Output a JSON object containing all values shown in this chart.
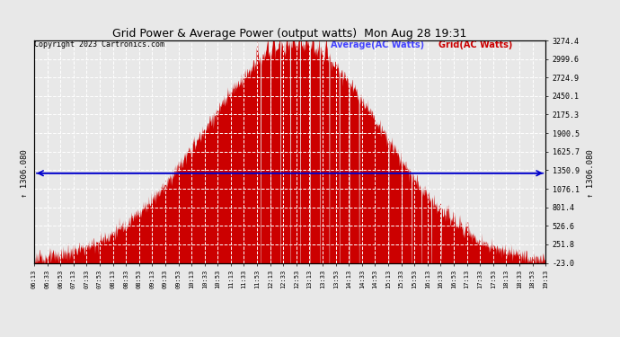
{
  "title": "Grid Power & Average Power (output watts)  Mon Aug 28 19:31",
  "copyright": "Copyright 2023 Cartronics.com",
  "legend_avg": "Average(AC Watts)",
  "legend_grid": "Grid(AC Watts)",
  "ylabel_left": "↑1306.080",
  "ylabel_right": "↑1306.080",
  "average_value": 1306.08,
  "y_min": -23.0,
  "y_max": 3274.4,
  "yticks_right": [
    -23.0,
    251.8,
    526.6,
    801.4,
    1076.1,
    1350.9,
    1625.7,
    1900.5,
    2175.3,
    2450.1,
    2724.9,
    2999.6,
    3274.4
  ],
  "background_color": "#e8e8e8",
  "fill_color": "#cc0000",
  "avg_line_color": "#0000cc",
  "grid_color": "#ffffff",
  "title_color": "#000000",
  "copyright_color": "#000000",
  "avg_label_color": "#4444ff",
  "grid_label_color": "#cc0000",
  "time_labels": [
    "06:13",
    "06:33",
    "06:53",
    "07:13",
    "07:33",
    "07:53",
    "08:13",
    "08:33",
    "08:53",
    "09:13",
    "09:33",
    "09:53",
    "10:13",
    "10:33",
    "10:53",
    "11:13",
    "11:33",
    "11:53",
    "12:13",
    "12:33",
    "12:53",
    "13:13",
    "13:33",
    "13:53",
    "14:13",
    "14:33",
    "14:53",
    "15:13",
    "15:33",
    "15:53",
    "16:13",
    "16:33",
    "16:53",
    "17:13",
    "17:33",
    "17:53",
    "18:13",
    "18:33",
    "18:53",
    "19:13"
  ]
}
